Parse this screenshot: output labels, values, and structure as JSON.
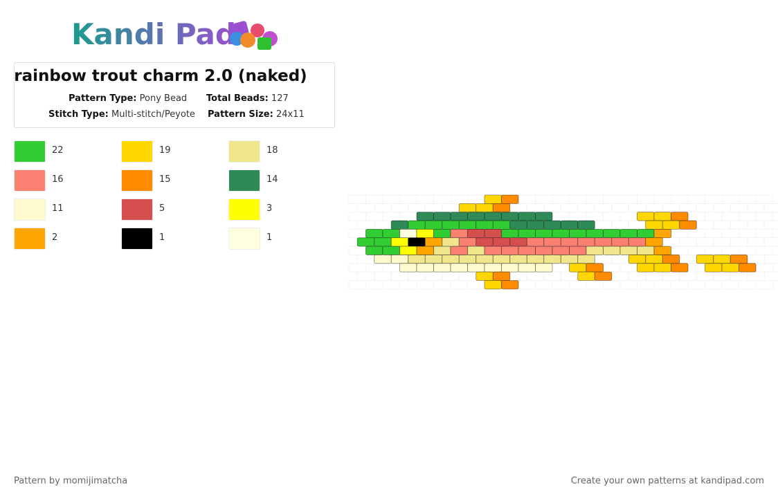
{
  "logo": "Kandi Pad",
  "title": "rainbow trout charm 2.0 (naked)",
  "details": [
    {
      "label": "Pattern Type:",
      "value": "Pony Bead"
    },
    {
      "label": "Total Beads:",
      "value": "127"
    },
    {
      "label": "Stitch Type:",
      "value": "Multi-stitch/Peyote"
    },
    {
      "label": "Pattern Size:",
      "value": "24x11"
    }
  ],
  "palette": [
    {
      "color": "#32cd32",
      "count": 22
    },
    {
      "color": "#ffd700",
      "count": 19
    },
    {
      "color": "#f0e68c",
      "count": 18
    },
    {
      "color": "#fa8072",
      "count": 16
    },
    {
      "color": "#ff8c00",
      "count": 15
    },
    {
      "color": "#2e8b57",
      "count": 14
    },
    {
      "color": "#fffacd",
      "count": 11
    },
    {
      "color": "#d64f4f",
      "count": 5
    },
    {
      "color": "#ffff00",
      "count": 3
    },
    {
      "color": "#ffa500",
      "count": 2
    },
    {
      "color": "#000000",
      "count": 1
    },
    {
      "color": "#ffffe0",
      "count": 1
    }
  ],
  "footer": {
    "author": "Pattern by momijimatcha",
    "credit": "Create your own patterns at kandipad.com"
  }
}
